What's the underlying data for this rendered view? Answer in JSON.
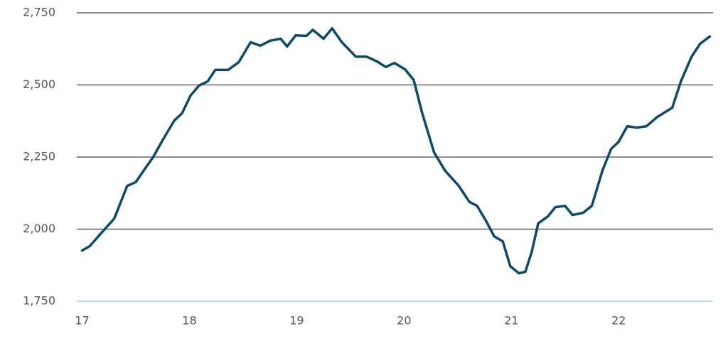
{
  "chart_data": {
    "type": "line",
    "x": [
      17.0,
      17.07,
      17.17,
      17.3,
      17.36,
      17.42,
      17.5,
      17.6,
      17.66,
      17.76,
      17.86,
      17.93,
      18.01,
      18.09,
      18.17,
      18.24,
      18.36,
      18.46,
      18.57,
      18.66,
      18.75,
      18.85,
      18.91,
      18.99,
      19.09,
      19.15,
      19.25,
      19.33,
      19.42,
      19.55,
      19.65,
      19.75,
      19.83,
      19.91,
      20.01,
      20.09,
      20.17,
      20.28,
      20.38,
      20.51,
      20.61,
      20.68,
      20.77,
      20.84,
      20.92,
      20.99,
      21.07,
      21.13,
      21.19,
      21.25,
      21.34,
      21.41,
      21.5,
      21.57,
      21.67,
      21.75,
      21.85,
      21.93,
      22.0,
      22.08,
      22.17,
      22.26,
      22.36,
      22.5,
      22.58,
      22.68,
      22.76,
      22.85
    ],
    "values": [
      1926,
      1941,
      1983,
      2037,
      2094,
      2150,
      2163,
      2217,
      2249,
      2315,
      2377,
      2401,
      2463,
      2498,
      2512,
      2552,
      2552,
      2579,
      2648,
      2636,
      2653,
      2660,
      2633,
      2672,
      2670,
      2691,
      2660,
      2696,
      2648,
      2598,
      2598,
      2581,
      2562,
      2576,
      2554,
      2517,
      2401,
      2266,
      2204,
      2150,
      2094,
      2081,
      2025,
      1975,
      1958,
      1872,
      1847,
      1852,
      1921,
      2020,
      2044,
      2076,
      2081,
      2049,
      2057,
      2081,
      2204,
      2278,
      2303,
      2357,
      2352,
      2357,
      2389,
      2421,
      2512,
      2598,
      2643,
      2668
    ],
    "color": "#0d4a6a",
    "xlim": [
      16.95,
      22.88
    ],
    "xticks": [
      17,
      18,
      19,
      20,
      21,
      22
    ],
    "ylim": [
      1750,
      2750
    ],
    "yticks": [
      {
        "value": 1750,
        "label": "1,750"
      },
      {
        "value": 2000,
        "label": "2,000"
      },
      {
        "value": 2250,
        "label": "2,250"
      },
      {
        "value": 2500,
        "label": "2,500"
      },
      {
        "value": 2750,
        "label": "2,750"
      }
    ],
    "grid": true
  }
}
